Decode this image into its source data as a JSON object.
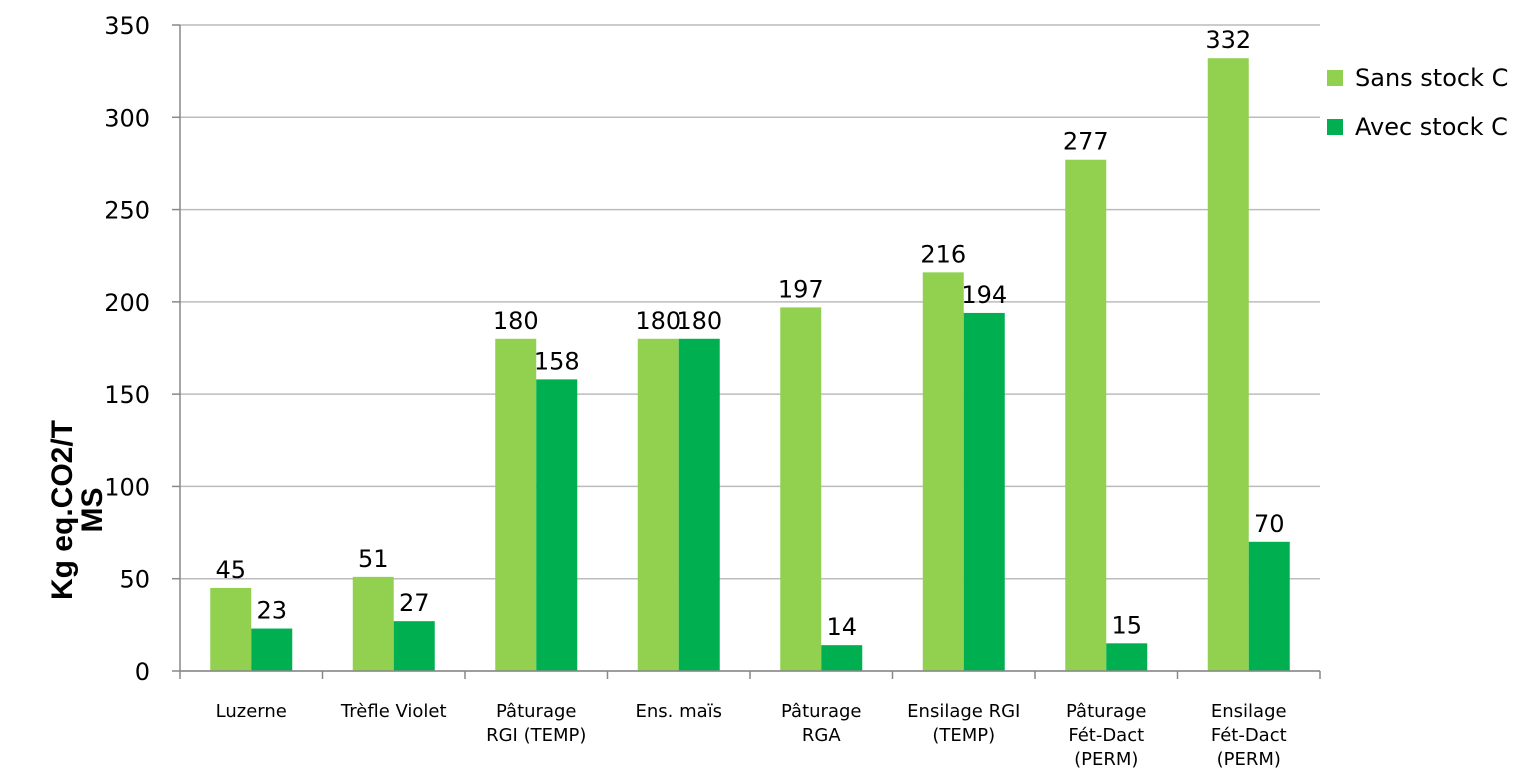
{
  "chart_data": {
    "type": "bar",
    "y_label": "Kg eq.CO2/T\nMS",
    "categories": [
      "Luzerne",
      "Trèfle Violet",
      "Pâturage\nRGI (TEMP)",
      "Ens. maïs",
      "Pâturage\nRGA",
      "Ensilage RGI\n(TEMP)",
      "Pâturage\nFét-Dact\n(PERM)",
      "Ensilage\nFét-Dact\n(PERM)"
    ],
    "series": [
      {
        "name": "Sans stock C",
        "color": "#92d050",
        "values": [
          45,
          51,
          180,
          180,
          197,
          216,
          277,
          332
        ]
      },
      {
        "name": "Avec stock C",
        "color": "#00b050",
        "values": [
          23,
          27,
          158,
          180,
          14,
          194,
          15,
          70
        ]
      }
    ],
    "ylim": [
      0,
      350
    ],
    "yticks": [
      0,
      50,
      100,
      150,
      200,
      250,
      300,
      350
    ],
    "grid": true,
    "legend": "right"
  }
}
